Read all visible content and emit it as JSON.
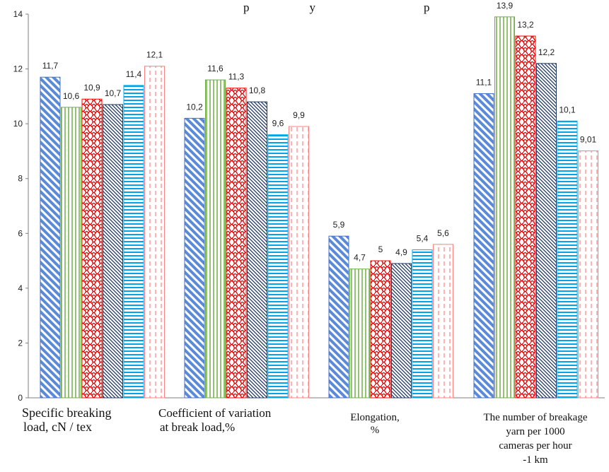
{
  "chart_data": {
    "type": "bar",
    "title": "p                    y                                    p",
    "categories": [
      "Specific breaking load, cN / tex",
      "Coefficient of variation at break load,%",
      "Elongation, %",
      "The number of breakage yarn per 1000 cameras per hour -1 km"
    ],
    "series": [
      {
        "values": [
          11.7,
          10.2,
          5.9,
          11.1
        ],
        "labels": [
          "11,7",
          "10,2",
          "5,9",
          "11,1"
        ],
        "pattern": "diag-down",
        "color": "#4472c4"
      },
      {
        "values": [
          10.6,
          11.6,
          4.7,
          13.9
        ],
        "labels": [
          "10,6",
          "11,6",
          "4,7",
          "13,9"
        ],
        "pattern": "vertical",
        "color": "#70ad47"
      },
      {
        "values": [
          10.9,
          11.3,
          5.0,
          13.2
        ],
        "labels": [
          "10,9",
          "11,3",
          "5",
          "13,2"
        ],
        "pattern": "scales",
        "color": "#ff0000"
      },
      {
        "values": [
          10.7,
          10.8,
          4.9,
          12.2
        ],
        "labels": [
          "10,7",
          "10,8",
          "4,9",
          "12,2"
        ],
        "pattern": "diag-dense",
        "color": "#1f3864"
      },
      {
        "values": [
          11.4,
          9.6,
          5.4,
          10.1
        ],
        "labels": [
          "11,4",
          "9,6",
          "5,4",
          "10,1"
        ],
        "pattern": "horizontal",
        "color": "#00b0f0"
      },
      {
        "values": [
          12.1,
          9.9,
          5.6,
          9.01
        ],
        "labels": [
          "12,1",
          "9,9",
          "5,6",
          "9,01"
        ],
        "pattern": "dashed-vertical",
        "color": "#ff8080"
      }
    ],
    "yticks": [
      "0",
      "2",
      "4",
      "6",
      "8",
      "10",
      "12",
      "14"
    ],
    "ylim": [
      0,
      14
    ],
    "grid": false,
    "legend": "none"
  }
}
